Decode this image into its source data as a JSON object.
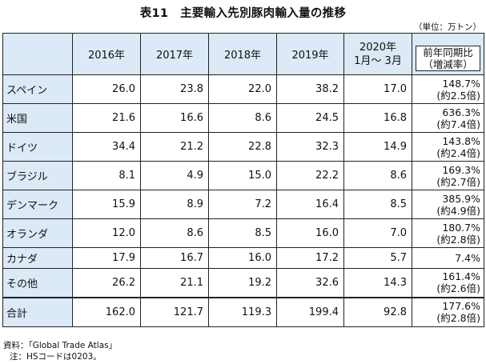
{
  "title": "表11　主要輸入先別豚肉輸入量の推移",
  "unit": "（単位：万トン）",
  "table": {
    "headers": [
      "2016年",
      "2017年",
      "2018年",
      "2019年",
      "2020年",
      "1月～ 3月",
      "前年同期比",
      "（増減率）"
    ],
    "rows": [
      {
        "name": "スペイン",
        "v2016": "26.0",
        "v2017": "23.8",
        "v2018": "22.0",
        "v2019": "38.2",
        "v2020": "17.0",
        "pct": "148.7%",
        "mult": "(約2.5倍)"
      },
      {
        "name": "米国",
        "v2016": "21.6",
        "v2017": "16.6",
        "v2018": "8.6",
        "v2019": "24.5",
        "v2020": "16.8",
        "pct": "636.3%",
        "mult": "(約7.4倍)"
      },
      {
        "name": "ドイツ",
        "v2016": "34.4",
        "v2017": "21.2",
        "v2018": "22.8",
        "v2019": "32.3",
        "v2020": "14.9",
        "pct": "143.8%",
        "mult": "(約2.4倍)"
      },
      {
        "name": "ブラジル",
        "v2016": "8.1",
        "v2017": "4.9",
        "v2018": "15.0",
        "v2019": "22.2",
        "v2020": "8.6",
        "pct": "169.3%",
        "mult": "(約2.7倍)"
      },
      {
        "name": "デンマーク",
        "v2016": "15.9",
        "v2017": "8.9",
        "v2018": "7.2",
        "v2019": "16.4",
        "v2020": "8.5",
        "pct": "385.9%",
        "mult": "(約4.9倍)"
      },
      {
        "name": "オランダ",
        "v2016": "12.0",
        "v2017": "8.6",
        "v2018": "8.5",
        "v2019": "16.0",
        "v2020": "7.0",
        "pct": "180.7%",
        "mult": "(約2.8倍)"
      },
      {
        "name": "カナダ",
        "v2016": "17.9",
        "v2017": "16.7",
        "v2018": "16.0",
        "v2019": "17.2",
        "v2020": "5.7",
        "pct": "7.4%",
        "mult": ""
      },
      {
        "name": "その他",
        "v2016": "26.2",
        "v2017": "21.1",
        "v2018": "19.2",
        "v2019": "32.6",
        "v2020": "14.3",
        "pct": "161.4%",
        "mult": "(約2.6倍)"
      },
      {
        "name": "合計",
        "v2016": "162.0",
        "v2017": "121.7",
        "v2018": "119.3",
        "v2019": "199.4",
        "v2020": "92.8",
        "pct": "177.6%",
        "mult": "(約2.8倍)"
      }
    ]
  },
  "notes": {
    "source": "資料：「Global Trade Atlas」",
    "note": "注：HSコードは0203。"
  }
}
